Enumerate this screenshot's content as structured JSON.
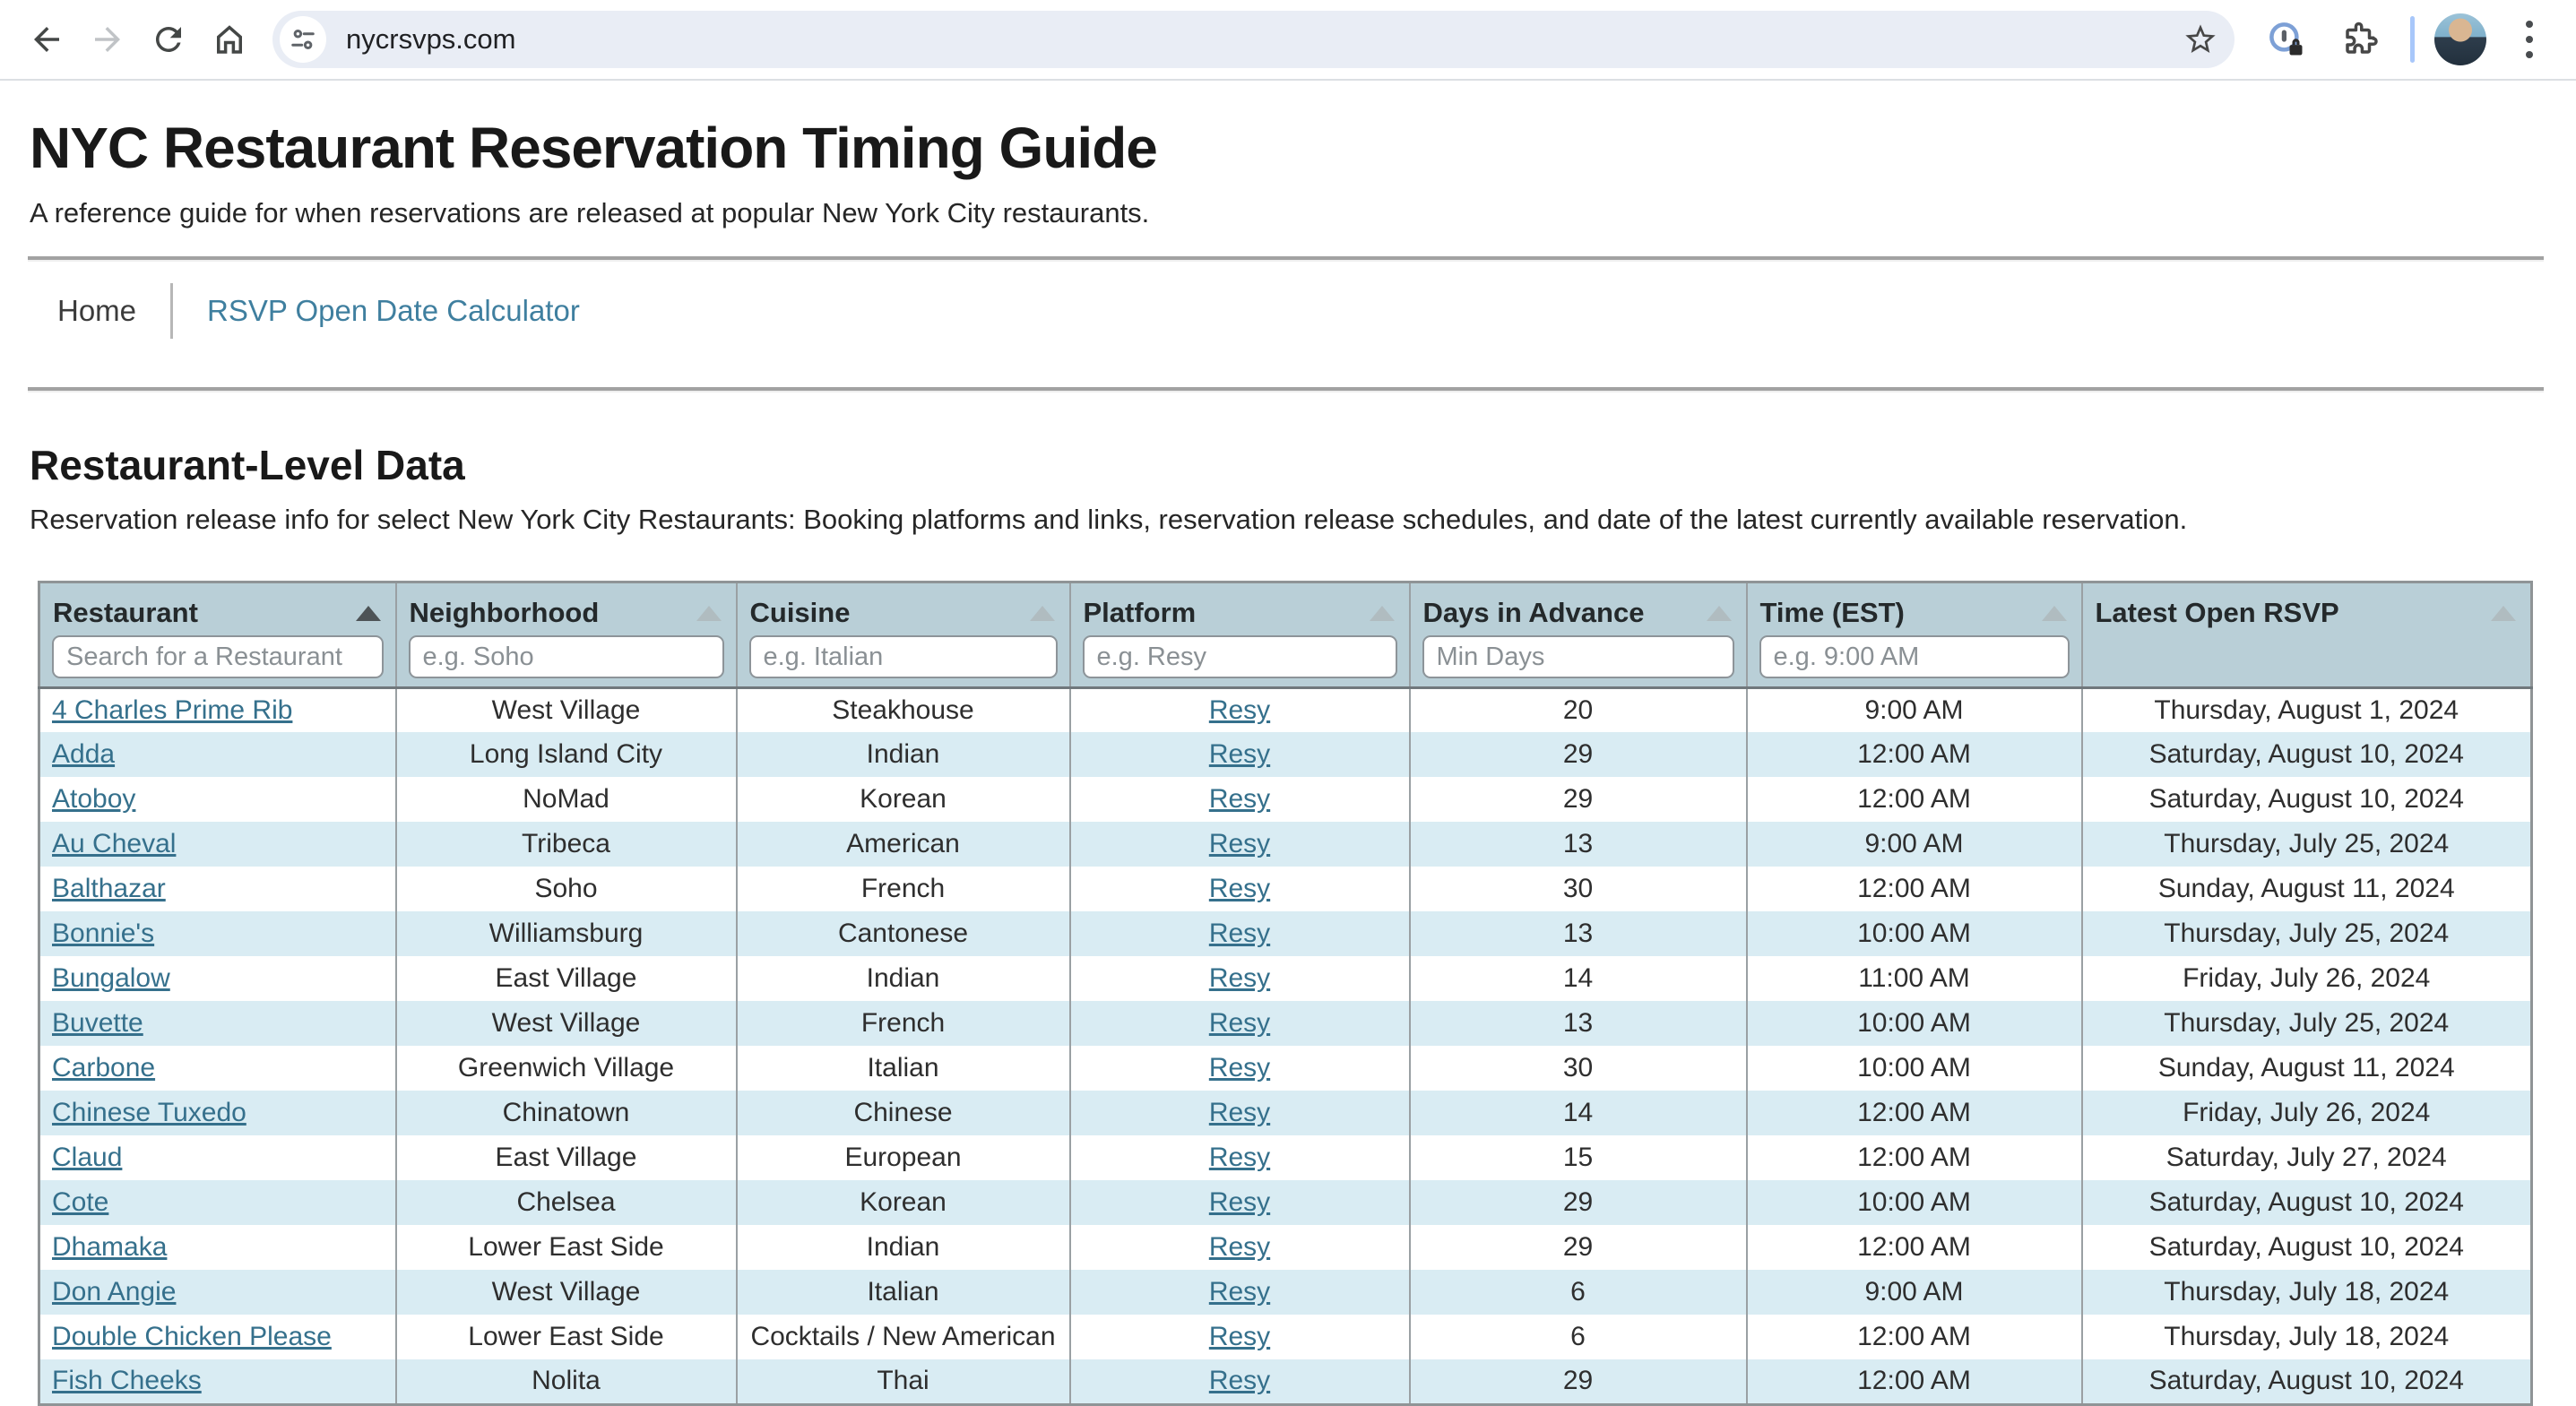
{
  "browser": {
    "url": "nycrsvps.com",
    "icons": [
      "back",
      "forward",
      "reload",
      "home",
      "tune",
      "bookmark-star",
      "password-manager",
      "extensions-puzzle",
      "profile-avatar",
      "kebab-menu"
    ]
  },
  "page": {
    "title": "NYC Restaurant Reservation Timing Guide",
    "subtitle": "A reference guide for when reservations are released at popular New York City restaurants.",
    "nav": {
      "items": [
        {
          "label": "Home",
          "active": true
        },
        {
          "label": "RSVP Open Date Calculator",
          "active": false
        }
      ]
    },
    "section": {
      "heading": "Restaurant-Level Data",
      "description": "Reservation release info for select New York City Restaurants: Booking platforms and links, reservation release schedules, and date of the latest currently available reservation."
    },
    "table": {
      "columns": [
        {
          "key": "restaurant",
          "label": "Restaurant",
          "placeholder": "Search for a Restaurant",
          "sort_active": true,
          "link": true
        },
        {
          "key": "neighborhood",
          "label": "Neighborhood",
          "placeholder": "e.g. Soho",
          "sort_active": false,
          "link": false
        },
        {
          "key": "cuisine",
          "label": "Cuisine",
          "placeholder": "e.g. Italian",
          "sort_active": false,
          "link": false
        },
        {
          "key": "platform",
          "label": "Platform",
          "placeholder": "e.g. Resy",
          "sort_active": false,
          "link": true
        },
        {
          "key": "days",
          "label": "Days in Advance",
          "placeholder": "Min Days",
          "sort_active": false,
          "link": false
        },
        {
          "key": "time",
          "label": "Time (EST)",
          "placeholder": "e.g. 9:00 AM",
          "sort_active": false,
          "link": false
        },
        {
          "key": "rsvp",
          "label": "Latest Open RSVP",
          "placeholder": null,
          "sort_active": false,
          "link": false
        }
      ],
      "rows": [
        [
          "4 Charles Prime Rib",
          "West Village",
          "Steakhouse",
          "Resy",
          "20",
          "9:00 AM",
          "Thursday, August 1, 2024"
        ],
        [
          "Adda",
          "Long Island City",
          "Indian",
          "Resy",
          "29",
          "12:00 AM",
          "Saturday, August 10, 2024"
        ],
        [
          "Atoboy",
          "NoMad",
          "Korean",
          "Resy",
          "29",
          "12:00 AM",
          "Saturday, August 10, 2024"
        ],
        [
          "Au Cheval",
          "Tribeca",
          "American",
          "Resy",
          "13",
          "9:00 AM",
          "Thursday, July 25, 2024"
        ],
        [
          "Balthazar",
          "Soho",
          "French",
          "Resy",
          "30",
          "12:00 AM",
          "Sunday, August 11, 2024"
        ],
        [
          "Bonnie's",
          "Williamsburg",
          "Cantonese",
          "Resy",
          "13",
          "10:00 AM",
          "Thursday, July 25, 2024"
        ],
        [
          "Bungalow",
          "East Village",
          "Indian",
          "Resy",
          "14",
          "11:00 AM",
          "Friday, July 26, 2024"
        ],
        [
          "Buvette",
          "West Village",
          "French",
          "Resy",
          "13",
          "10:00 AM",
          "Thursday, July 25, 2024"
        ],
        [
          "Carbone",
          "Greenwich Village",
          "Italian",
          "Resy",
          "30",
          "10:00 AM",
          "Sunday, August 11, 2024"
        ],
        [
          "Chinese Tuxedo",
          "Chinatown",
          "Chinese",
          "Resy",
          "14",
          "12:00 AM",
          "Friday, July 26, 2024"
        ],
        [
          "Claud",
          "East Village",
          "European",
          "Resy",
          "15",
          "12:00 AM",
          "Saturday, July 27, 2024"
        ],
        [
          "Cote",
          "Chelsea",
          "Korean",
          "Resy",
          "29",
          "10:00 AM",
          "Saturday, August 10, 2024"
        ],
        [
          "Dhamaka",
          "Lower East Side",
          "Indian",
          "Resy",
          "29",
          "12:00 AM",
          "Saturday, August 10, 2024"
        ],
        [
          "Don Angie",
          "West Village",
          "Italian",
          "Resy",
          "6",
          "9:00 AM",
          "Thursday, July 18, 2024"
        ],
        [
          "Double Chicken Please",
          "Lower East Side",
          "Cocktails / New American",
          "Resy",
          "6",
          "12:00 AM",
          "Thursday, July 18, 2024"
        ],
        [
          "Fish Cheeks",
          "Nolita",
          "Thai",
          "Resy",
          "29",
          "12:00 AM",
          "Saturday, August 10, 2024"
        ]
      ]
    }
  },
  "colors": {
    "link": "#35708c",
    "nav_link": "#3f7f9f",
    "header_bg": "#b9cfd7",
    "alt_row_bg": "#d9ecf3"
  }
}
